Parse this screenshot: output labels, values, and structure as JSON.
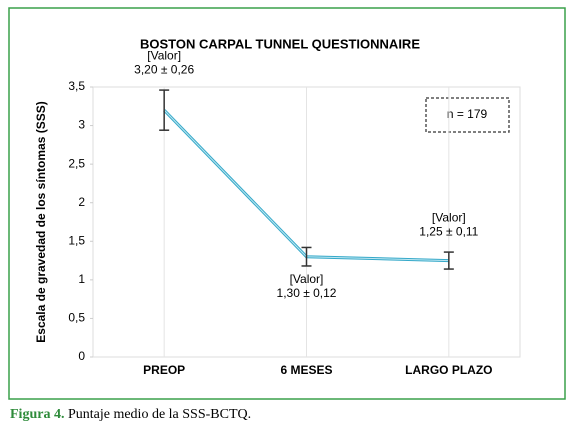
{
  "chart_data": {
    "type": "line",
    "title": "BOSTON CARPAL TUNNEL QUESTIONNAIRE",
    "y_label": "Escala de gravedad de los síntomas (SSS)",
    "categories": [
      "PREOP",
      "6 MESES",
      "LARGO PLAZO"
    ],
    "series": [
      {
        "color": "#36a9c9",
        "values": [
          3.2,
          1.3,
          1.25
        ],
        "errors": [
          0.26,
          0.12,
          0.11
        ],
        "value_labels": [
          [
            "[Valor]",
            "3,20 ± 0,26"
          ],
          [
            "[Valor]",
            "1,30 ± 0,12"
          ],
          [
            "[Valor]",
            "1,25 ± 0,11"
          ]
        ]
      }
    ],
    "ylim": [
      0,
      3.5
    ],
    "yticks": [
      0,
      {
        "value": 0.5,
        "label": "0,5"
      },
      1,
      {
        "value": 1.5,
        "label": "1,5"
      },
      2,
      {
        "value": 2.5,
        "label": "2,5"
      },
      3,
      {
        "value": 3.5,
        "label": "3,5"
      }
    ],
    "annotation": "n = 179"
  },
  "caption": {
    "label": "Figura 4.",
    "text": "Puntaje medio de la SSS-BCTQ."
  }
}
